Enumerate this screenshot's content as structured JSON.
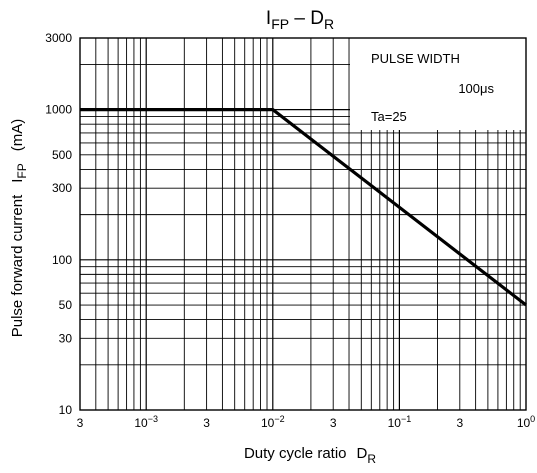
{
  "chart_data": {
    "type": "line",
    "title": {
      "main": "I",
      "main_sub": "FP",
      "sep": " – ",
      "rest": "D",
      "rest_sub": "R"
    },
    "x_axis": {
      "label": "Duty cycle ratio",
      "symbol": "D",
      "symbol_sub": "R",
      "scale": "log",
      "range": [
        0.0003,
        1
      ],
      "ticks": [
        {
          "value": 0.0003,
          "text": "3"
        },
        {
          "value": 0.001,
          "base": "10",
          "exp": "−3"
        },
        {
          "value": 0.003,
          "text": "3"
        },
        {
          "value": 0.01,
          "base": "10",
          "exp": "−2"
        },
        {
          "value": 0.03,
          "text": "3"
        },
        {
          "value": 0.1,
          "base": "10",
          "exp": "−1"
        },
        {
          "value": 0.3,
          "text": "3"
        },
        {
          "value": 1,
          "base": "10",
          "exp": "0"
        }
      ]
    },
    "y_axis": {
      "label": "Pulse forward current",
      "symbol": "I",
      "symbol_sub": "FP",
      "unit": "(mA)",
      "scale": "log",
      "range": [
        10,
        3000
      ],
      "ticks": [
        "10",
        "30",
        "50",
        "100",
        "300",
        "500",
        "1000",
        "3000"
      ]
    },
    "series": [
      {
        "x": [
          0.0003,
          0.01,
          1
        ],
        "y": [
          1000,
          1000,
          50
        ]
      }
    ],
    "grid": true,
    "annotation": {
      "line1": "PULSE WIDTH",
      "line2": "100μs",
      "line3": "Ta=25"
    },
    "colors": {
      "line": "#000000",
      "grid": "#000000",
      "background": "#ffffff"
    }
  }
}
